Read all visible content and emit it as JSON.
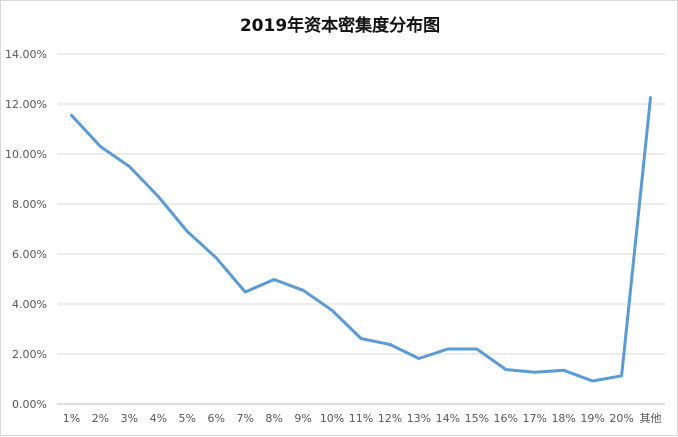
{
  "chart_data": {
    "type": "line",
    "title": "2019年资本密集度分布图",
    "xlabel": "",
    "ylabel": "",
    "categories": [
      "1%",
      "2%",
      "3%",
      "4%",
      "5%",
      "6%",
      "7%",
      "8%",
      "9%",
      "10%",
      "11%",
      "12%",
      "13%",
      "14%",
      "15%",
      "16%",
      "17%",
      "18%",
      "19%",
      "20%",
      "其他"
    ],
    "series": [
      {
        "values": [
          11.55,
          10.3,
          9.5,
          8.3,
          6.9,
          5.85,
          4.48,
          4.98,
          4.55,
          3.75,
          2.62,
          2.38,
          1.82,
          2.2,
          2.2,
          1.38,
          1.27,
          1.35,
          0.92,
          1.13,
          12.25
        ],
        "color": "#5b9bd5"
      }
    ],
    "ylim": [
      0,
      14
    ],
    "yticks": [
      "0.00%",
      "2.00%",
      "4.00%",
      "6.00%",
      "8.00%",
      "10.00%",
      "12.00%",
      "14.00%"
    ],
    "grid": true,
    "legend": "none"
  }
}
